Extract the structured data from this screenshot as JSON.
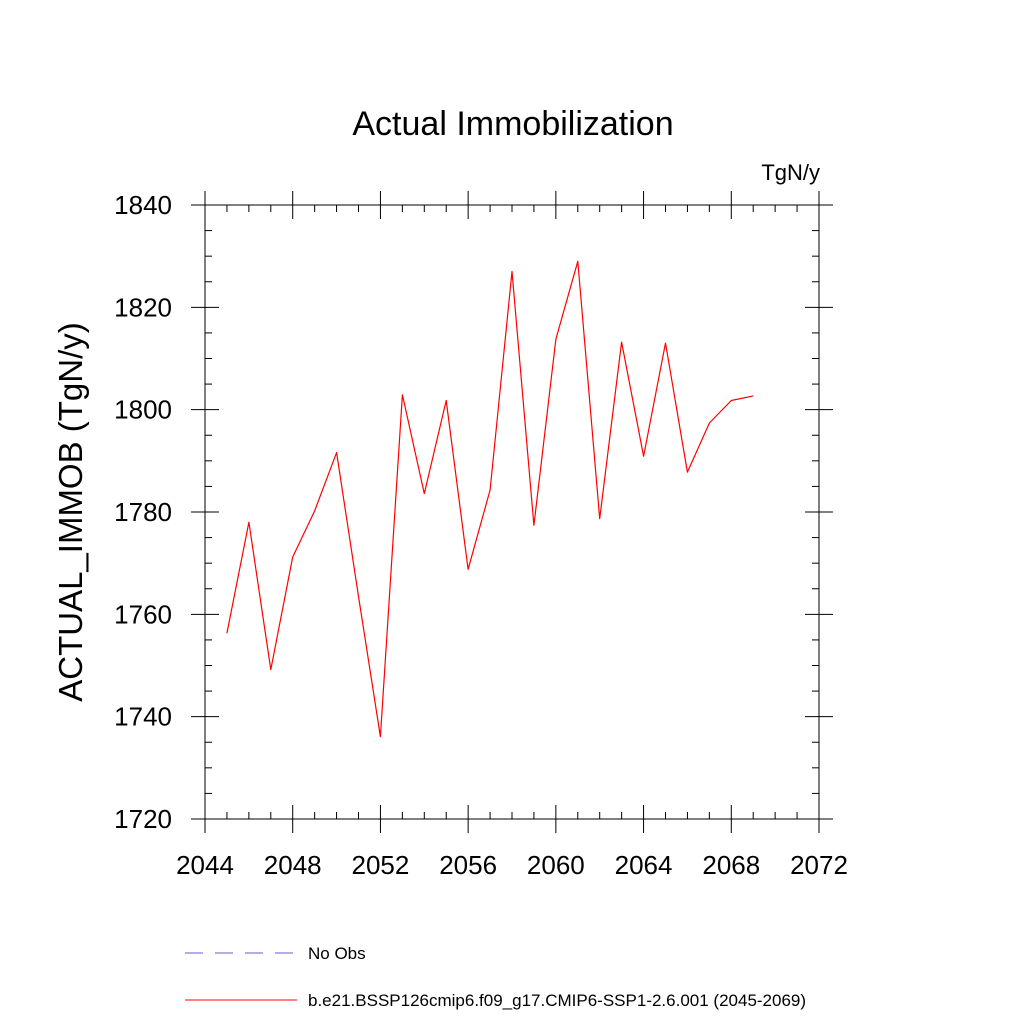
{
  "chart_data": {
    "type": "line",
    "title": "Actual Immobilization",
    "units_label": "TgN/y",
    "xlabel": "",
    "ylabel": "ACTUAL_IMMOB  (TgN/y)",
    "xlim": [
      2044,
      2072
    ],
    "ylim": [
      1720,
      1840
    ],
    "x_ticks": [
      2044,
      2048,
      2052,
      2056,
      2060,
      2064,
      2068,
      2072
    ],
    "y_ticks": [
      1720,
      1740,
      1760,
      1780,
      1800,
      1820,
      1840
    ],
    "x_minor_step": 1,
    "y_minor_step": 5,
    "series": [
      {
        "name": "b.e21.BSSP126cmip6.f09_g17.CMIP6-SSP1-2.6.001 (2045-2069)",
        "color": "#ff0000",
        "style": "solid",
        "x": [
          2045,
          2046,
          2047,
          2048,
          2049,
          2050,
          2051,
          2052,
          2053,
          2054,
          2055,
          2056,
          2057,
          2058,
          2059,
          2060,
          2061,
          2062,
          2063,
          2064,
          2065,
          2066,
          2067,
          2068,
          2069
        ],
        "values": [
          1756.3,
          1778.0,
          1749.2,
          1771.2,
          1780.2,
          1791.6,
          1763.5,
          1736.1,
          1802.9,
          1783.6,
          1801.8,
          1768.8,
          1784.3,
          1827.0,
          1777.4,
          1813.8,
          1829.0,
          1778.7,
          1813.2,
          1790.9,
          1813.0,
          1787.8,
          1797.4,
          1801.8,
          1802.7
        ]
      }
    ],
    "legend": [
      {
        "label": "No Obs",
        "color": "#6a5acd",
        "style": "dashed"
      },
      {
        "label": "b.e21.BSSP126cmip6.f09_g17.CMIP6-SSP1-2.6.001 (2045-2069)",
        "color": "#ff0000",
        "style": "solid"
      }
    ],
    "legend_position": "bottom"
  }
}
